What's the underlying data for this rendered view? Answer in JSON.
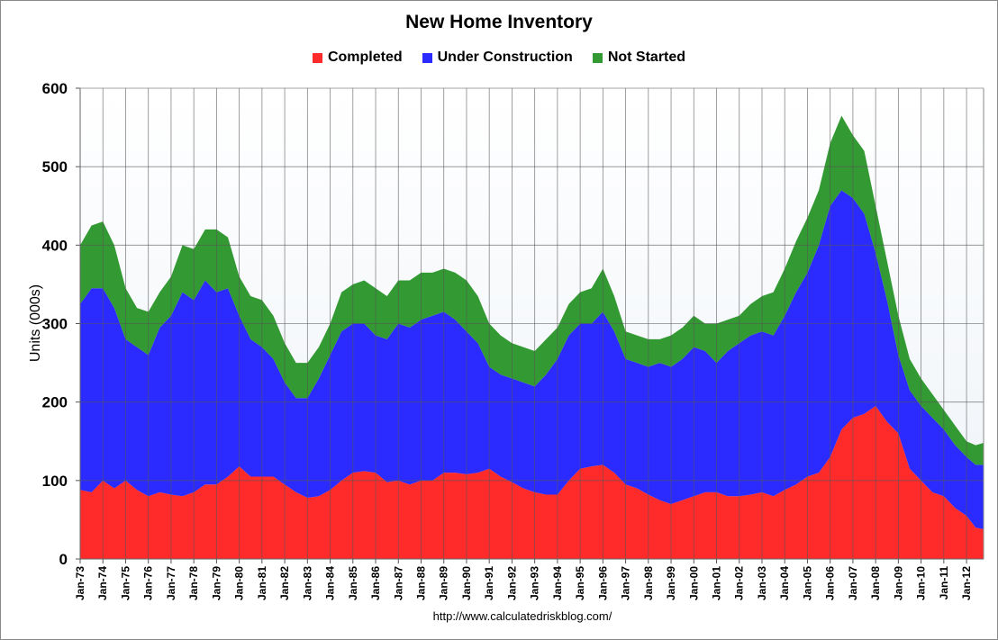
{
  "chart_data": {
    "type": "area",
    "stacked": true,
    "title": "New Home Inventory",
    "ylabel": "Units (000s)",
    "xlabel": "",
    "source": "http://www.calculatedriskblog.com/",
    "ylim": [
      0,
      600
    ],
    "yticks": [
      0,
      100,
      200,
      300,
      400,
      500,
      600
    ],
    "xlim": [
      1973,
      2012.75
    ],
    "xticks": [
      "Jan-73",
      "Jan-74",
      "Jan-75",
      "Jan-76",
      "Jan-77",
      "Jan-78",
      "Jan-79",
      "Jan-80",
      "Jan-81",
      "Jan-82",
      "Jan-83",
      "Jan-84",
      "Jan-85",
      "Jan-86",
      "Jan-87",
      "Jan-88",
      "Jan-89",
      "Jan-90",
      "Jan-91",
      "Jan-92",
      "Jan-93",
      "Jan-94",
      "Jan-95",
      "Jan-96",
      "Jan-97",
      "Jan-98",
      "Jan-99",
      "Jan-00",
      "Jan-01",
      "Jan-02",
      "Jan-03",
      "Jan-04",
      "Jan-05",
      "Jan-06",
      "Jan-07",
      "Jan-08",
      "Jan-09",
      "Jan-10",
      "Jan-11",
      "Jan-12"
    ],
    "grid": true,
    "legend_position": "top",
    "x": [
      1973,
      1973.5,
      1974,
      1974.5,
      1975,
      1975.5,
      1976,
      1976.5,
      1977,
      1977.5,
      1978,
      1978.5,
      1979,
      1979.5,
      1980,
      1980.5,
      1981,
      1981.5,
      1982,
      1982.5,
      1983,
      1983.5,
      1984,
      1984.5,
      1985,
      1985.5,
      1986,
      1986.5,
      1987,
      1987.5,
      1988,
      1988.5,
      1989,
      1989.5,
      1990,
      1990.5,
      1991,
      1991.5,
      1992,
      1992.5,
      1993,
      1993.5,
      1994,
      1994.5,
      1995,
      1995.5,
      1996,
      1996.5,
      1997,
      1997.5,
      1998,
      1998.5,
      1999,
      1999.5,
      2000,
      2000.5,
      2001,
      2001.5,
      2002,
      2002.5,
      2003,
      2003.5,
      2004,
      2004.5,
      2005,
      2005.5,
      2006,
      2006.5,
      2007,
      2007.5,
      2008,
      2008.5,
      2009,
      2009.5,
      2010,
      2010.5,
      2011,
      2011.5,
      2012,
      2012.4,
      2012.75
    ],
    "series": [
      {
        "name": "Completed",
        "color": "#ff2b2b",
        "values": [
          88,
          85,
          100,
          90,
          100,
          88,
          80,
          85,
          82,
          80,
          85,
          95,
          95,
          105,
          118,
          105,
          105,
          105,
          95,
          85,
          78,
          80,
          88,
          100,
          110,
          112,
          110,
          98,
          100,
          95,
          100,
          100,
          110,
          110,
          108,
          110,
          115,
          105,
          98,
          90,
          85,
          82,
          82,
          100,
          115,
          118,
          120,
          110,
          95,
          90,
          82,
          75,
          70,
          75,
          80,
          85,
          85,
          80,
          80,
          82,
          85,
          80,
          88,
          95,
          105,
          110,
          130,
          165,
          180,
          185,
          195,
          175,
          160,
          115,
          100,
          85,
          80,
          65,
          55,
          40,
          38
        ]
      },
      {
        "name": "Under Construction",
        "color": "#2b2bff",
        "values": [
          237,
          260,
          245,
          230,
          180,
          182,
          180,
          210,
          228,
          260,
          245,
          260,
          245,
          240,
          192,
          175,
          165,
          150,
          130,
          120,
          127,
          150,
          172,
          190,
          190,
          188,
          175,
          182,
          200,
          200,
          205,
          210,
          205,
          195,
          182,
          165,
          130,
          130,
          132,
          135,
          135,
          153,
          173,
          185,
          185,
          182,
          195,
          180,
          160,
          160,
          163,
          175,
          175,
          180,
          190,
          180,
          165,
          185,
          195,
          203,
          205,
          205,
          222,
          245,
          260,
          290,
          320,
          305,
          280,
          255,
          195,
          155,
          100,
          100,
          95,
          95,
          85,
          80,
          75,
          80,
          82
        ]
      },
      {
        "name": "Not Started",
        "color": "#339933",
        "values": [
          75,
          80,
          85,
          80,
          65,
          50,
          55,
          45,
          50,
          60,
          65,
          65,
          80,
          65,
          50,
          55,
          60,
          55,
          50,
          45,
          45,
          40,
          40,
          50,
          50,
          55,
          60,
          55,
          55,
          60,
          60,
          55,
          55,
          60,
          65,
          60,
          55,
          50,
          45,
          45,
          45,
          45,
          40,
          40,
          40,
          45,
          55,
          45,
          35,
          35,
          35,
          30,
          40,
          40,
          40,
          35,
          50,
          40,
          35,
          40,
          45,
          55,
          60,
          65,
          70,
          70,
          80,
          95,
          80,
          80,
          60,
          50,
          50,
          40,
          35,
          30,
          25,
          25,
          20,
          25,
          28
        ]
      }
    ]
  }
}
